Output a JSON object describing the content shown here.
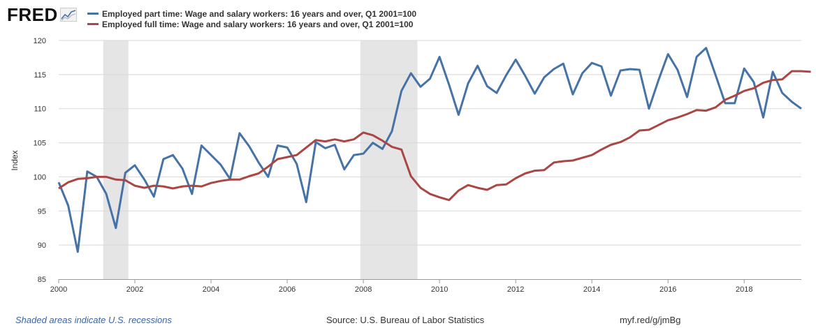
{
  "logo": {
    "text": "FRED"
  },
  "source": "Source: U.S. Bureau of Labor Statistics",
  "recession_note": "Shaded areas indicate U.S. recessions",
  "short_link": "myf.red/g/jmBg",
  "chart_data": {
    "type": "line",
    "ylabel": "Index",
    "ylim": [
      85,
      120
    ],
    "yticks": [
      85,
      90,
      95,
      100,
      105,
      110,
      115,
      120
    ],
    "xlim": [
      2000.0,
      2019.5
    ],
    "xticks": [
      2000,
      2002,
      2004,
      2006,
      2008,
      2010,
      2012,
      2014,
      2016,
      2018
    ],
    "grid": true,
    "legend_position": "top-left",
    "recessions": [
      [
        2001.17,
        2001.83
      ],
      [
        2007.92,
        2009.42
      ]
    ],
    "series": [
      {
        "name": "Employed part time: Wage and salary workers: 16 years and over, Q1 2001=100",
        "color": "#4572a7",
        "start": 2000.0,
        "step": 0.25,
        "values": [
          99.2,
          95.8,
          89.0,
          100.8,
          100.0,
          97.5,
          92.5,
          100.6,
          101.7,
          99.6,
          97.1,
          102.6,
          103.2,
          101.2,
          97.5,
          104.6,
          103.2,
          101.8,
          99.7,
          106.4,
          104.5,
          102.1,
          100.0,
          104.6,
          104.3,
          101.9,
          96.3,
          105.1,
          104.2,
          104.7,
          101.1,
          103.2,
          103.4,
          105.0,
          104.1,
          106.7,
          112.6,
          115.2,
          113.2,
          114.4,
          117.6,
          113.5,
          109.1,
          113.7,
          116.3,
          113.3,
          112.3,
          114.9,
          117.2,
          114.8,
          112.2,
          114.6,
          115.8,
          116.6,
          112.1,
          115.2,
          116.7,
          116.2,
          111.9,
          115.6,
          115.8,
          115.7,
          110.0,
          114.2,
          118.0,
          115.7,
          111.7,
          117.6,
          118.9,
          114.9,
          110.8,
          110.8,
          115.9,
          113.9,
          108.7,
          115.4,
          112.3,
          111.0,
          110.0
        ]
      },
      {
        "name": "Employed full time: Wage and salary workers: 16 years and over, Q1 2001=100",
        "color": "#aa4643",
        "start": 2000.0,
        "step": 0.25,
        "values": [
          98.3,
          99.2,
          99.7,
          99.8,
          100.0,
          100.0,
          99.6,
          99.5,
          98.7,
          98.4,
          98.7,
          98.6,
          98.3,
          98.6,
          98.7,
          98.6,
          99.1,
          99.4,
          99.6,
          99.6,
          100.1,
          100.5,
          101.5,
          102.6,
          102.9,
          103.2,
          104.3,
          105.4,
          105.2,
          105.5,
          105.2,
          105.5,
          106.5,
          106.1,
          105.3,
          104.4,
          104.0,
          100.1,
          98.4,
          97.5,
          97.0,
          96.6,
          98.0,
          98.8,
          98.4,
          98.1,
          98.8,
          98.9,
          99.8,
          100.5,
          100.9,
          101.0,
          102.1,
          102.3,
          102.4,
          102.8,
          103.2,
          104.0,
          104.7,
          105.1,
          105.8,
          106.8,
          106.9,
          107.6,
          108.3,
          108.7,
          109.2,
          109.8,
          109.7,
          110.2,
          111.3,
          111.9,
          112.6,
          113.0,
          113.8,
          114.2,
          114.3,
          115.5,
          115.5,
          115.4
        ]
      }
    ]
  }
}
